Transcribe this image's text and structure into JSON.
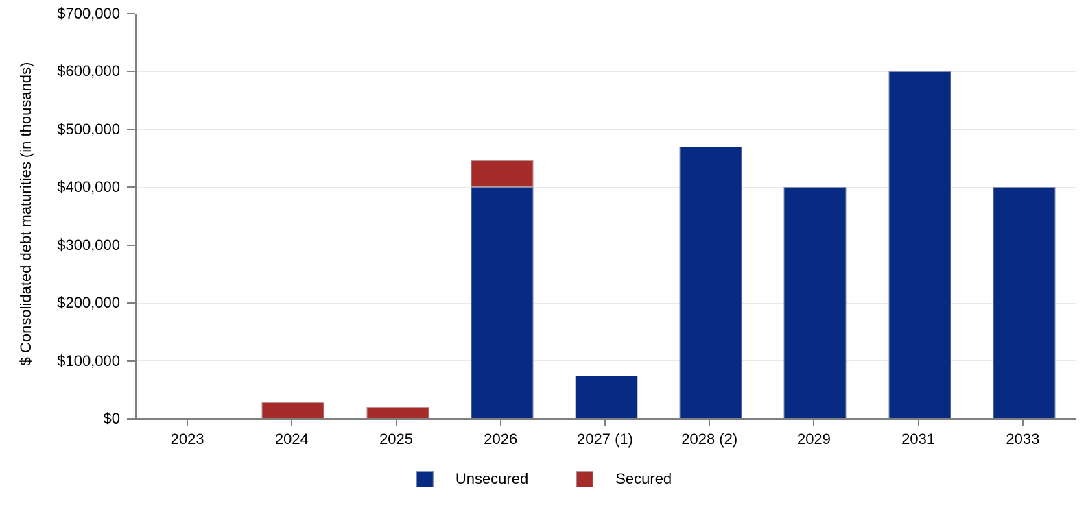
{
  "chart_data": {
    "type": "bar",
    "stacked": true,
    "title": "",
    "xlabel": "",
    "ylabel": "$ Consolidated debt maturities (in thousands)",
    "categories": [
      "2023",
      "2024",
      "2025",
      "2026",
      "2027 (1)",
      "2028 (2)",
      "2029",
      "2031",
      "2033"
    ],
    "series": [
      {
        "name": "Unsecured",
        "color": "#072A83",
        "values": [
          0,
          0,
          0,
          400000,
          75000,
          470000,
          400000,
          600000,
          400000
        ]
      },
      {
        "name": "Secured",
        "color": "#A62C2B",
        "values": [
          0,
          28000,
          20000,
          46000,
          0,
          0,
          0,
          0,
          0
        ]
      }
    ],
    "ylim": [
      0,
      700000
    ],
    "y_tick_step": 100000,
    "y_tick_labels": [
      "$0",
      "$100,000",
      "$200,000",
      "$300,000",
      "$400,000",
      "$500,000",
      "$600,000",
      "$700,000"
    ],
    "grid": true,
    "legend_position": "bottom"
  },
  "legend": {
    "items": [
      {
        "label": "Unsecured",
        "color": "#072A83"
      },
      {
        "label": "Secured",
        "color": "#A62C2B"
      }
    ]
  },
  "colors": {
    "background": "#FFFFFF",
    "axis": "#808080",
    "gridline": "#E8E8E8",
    "text": "#000000",
    "unsecured": "#072A83",
    "secured": "#A62C2B"
  }
}
